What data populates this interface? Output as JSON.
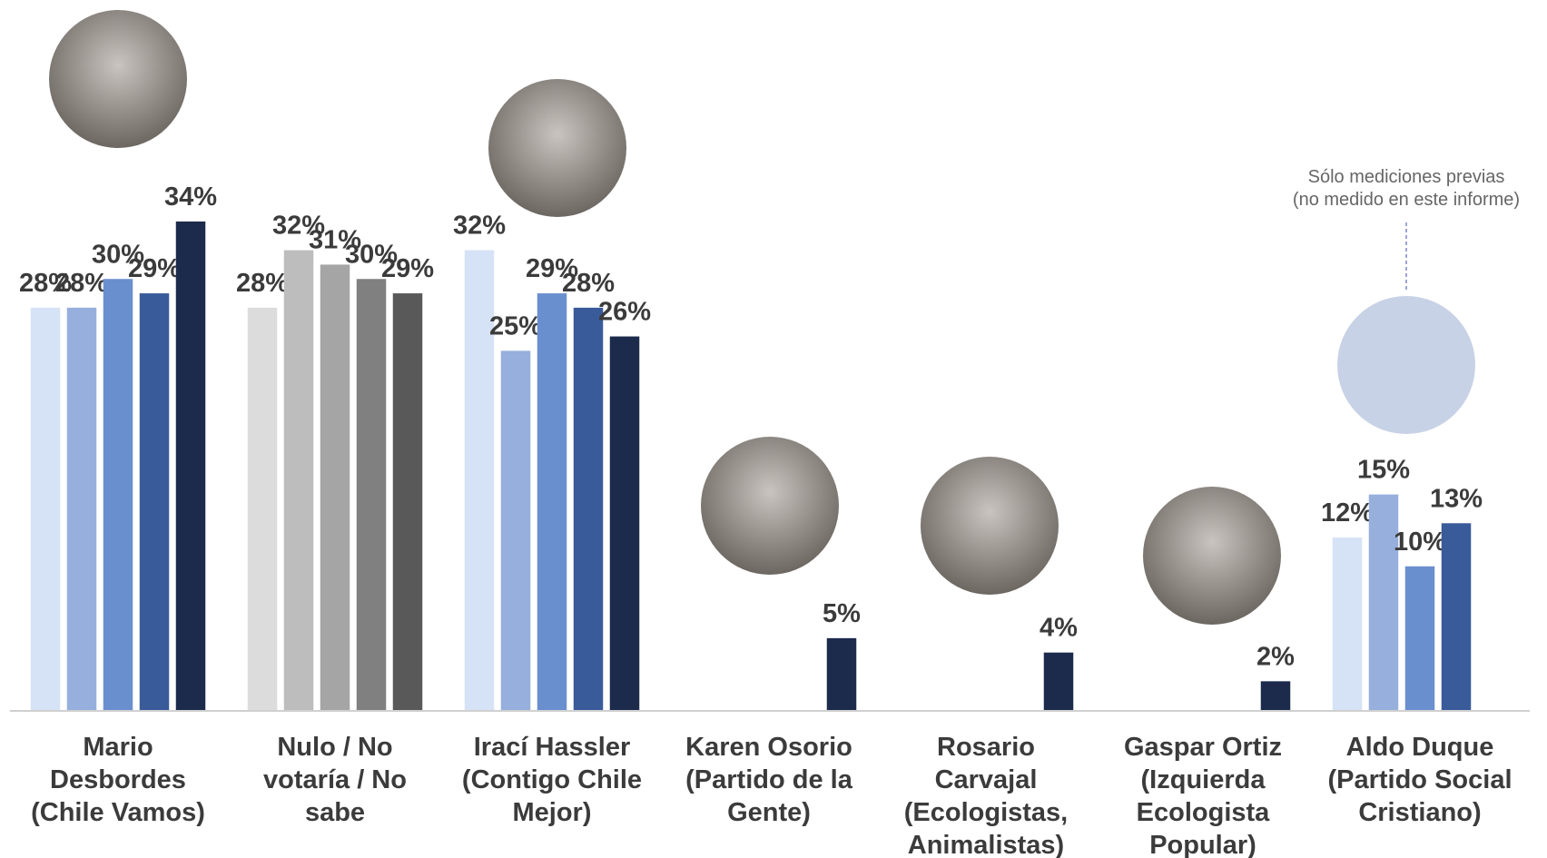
{
  "chart_data": {
    "type": "bar",
    "categories": [
      [
        "Mario",
        "Desbordes",
        "(Chile Vamos)"
      ],
      [
        "Nulo / No",
        "votaría / No",
        "sabe"
      ],
      [
        "Irací Hassler",
        "(Contigo Chile",
        "Mejor)"
      ],
      [
        "Karen Osorio",
        "(Partido de la",
        "Gente)"
      ],
      [
        "Rosario",
        "Carvajal",
        "(Ecologistas,",
        "Animalistas)"
      ],
      [
        "Gaspar Ortiz",
        "(Izquierda",
        "Ecologista",
        "Popular)"
      ],
      [
        "Aldo Duque",
        "(Partido Social",
        "Cristiano)"
      ]
    ],
    "series": [
      {
        "colors": [
          "#d6e2f5",
          "#dcdcdc",
          "#d6e2f5",
          "#d6e2f5",
          "#d6e2f5",
          "#d6e2f5",
          "#d6e2f5"
        ],
        "values": [
          28,
          28,
          32,
          null,
          null,
          null,
          12
        ],
        "value_labels": [
          "28%",
          "28%",
          "32%",
          null,
          null,
          null,
          "12%"
        ]
      },
      {
        "colors": [
          "#96afdd",
          "#bdbdbd",
          "#96afdd",
          "#96afdd",
          "#96afdd",
          "#96afdd",
          "#96afdd"
        ],
        "values": [
          28,
          32,
          25,
          null,
          null,
          null,
          15
        ],
        "value_labels": [
          "28%",
          "32%",
          "25%",
          null,
          null,
          null,
          "15%"
        ]
      },
      {
        "colors": [
          "#6a8fcf",
          "#a5a5a5",
          "#6a8fcf",
          "#6a8fcf",
          "#6a8fcf",
          "#6a8fcf",
          "#6a8fcf"
        ],
        "values": [
          30,
          31,
          29,
          null,
          null,
          null,
          10
        ],
        "value_labels": [
          "30%",
          "31%",
          "29%",
          null,
          null,
          null,
          "10%"
        ]
      },
      {
        "colors": [
          "#3a5b9a",
          "#808080",
          "#3a5b9a",
          "#3a5b9a",
          "#3a5b9a",
          "#3a5b9a",
          "#3a5b9a"
        ],
        "values": [
          29,
          30,
          28,
          null,
          null,
          null,
          13
        ],
        "value_labels": [
          "29%",
          "30%",
          "28%",
          null,
          null,
          null,
          "13%"
        ]
      },
      {
        "colors": [
          "#1c2b4c",
          "#595959",
          "#1c2b4c",
          "#1c2b4c",
          "#1c2b4c",
          "#1c2b4c",
          "#1c2b4c"
        ],
        "values": [
          34,
          29,
          26,
          5,
          4,
          2,
          null
        ],
        "value_labels": [
          "34%",
          "29%",
          "26%",
          "5%",
          "4%",
          "2%",
          null
        ]
      }
    ],
    "ylim": [
      0,
      40
    ],
    "annotation": [
      "Sólo mediciones previas",
      "(no medido en este informe)"
    ]
  }
}
